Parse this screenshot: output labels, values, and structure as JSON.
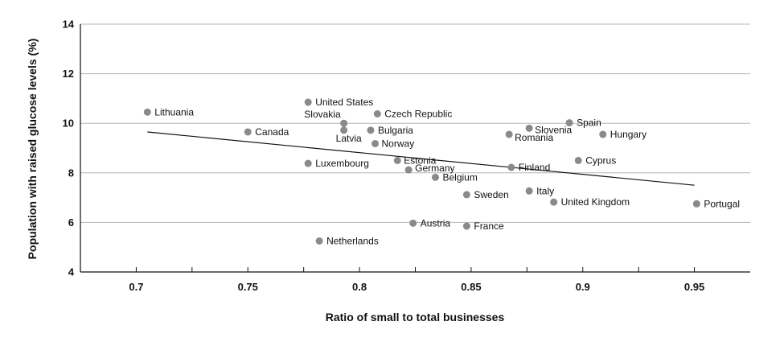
{
  "chart_data": {
    "type": "scatter",
    "title": "",
    "xlabel": "Ratio of small to total businesses",
    "ylabel": "Population with raised glucose levels (%)",
    "xlim": [
      0.675,
      0.975
    ],
    "ylim": [
      4,
      14
    ],
    "x_ticks": [
      0.7,
      0.75,
      0.8,
      0.85,
      0.9,
      0.95
    ],
    "x_tick_labels": [
      "0.7",
      "0.75",
      "0.8",
      "0.85",
      "0.9",
      "0.95"
    ],
    "y_ticks": [
      4,
      6,
      8,
      10,
      12,
      14
    ],
    "y_tick_labels": [
      "4",
      "6",
      "8",
      "10",
      "12",
      "14"
    ],
    "grid": "horizontal",
    "colors": {
      "point": "#8a8a8a",
      "trend": "#111111",
      "grid": "#b5b5b5",
      "axis": "#111111"
    },
    "points": [
      {
        "label": "Lithuania",
        "x": 0.705,
        "y": 10.45
      },
      {
        "label": "Canada",
        "x": 0.75,
        "y": 9.65
      },
      {
        "label": "United States",
        "x": 0.777,
        "y": 10.85
      },
      {
        "label": "Luxembourg",
        "x": 0.777,
        "y": 8.38
      },
      {
        "label": "Slovakia",
        "x": 0.793,
        "y": 10.0
      },
      {
        "label": "Latvia",
        "x": 0.793,
        "y": 9.72
      },
      {
        "label": "Netherlands",
        "x": 0.782,
        "y": 5.25
      },
      {
        "label": "Czech Republic",
        "x": 0.808,
        "y": 10.38
      },
      {
        "label": "Bulgaria",
        "x": 0.805,
        "y": 9.72
      },
      {
        "label": "Norway",
        "x": 0.807,
        "y": 9.18
      },
      {
        "label": "Estonia",
        "x": 0.817,
        "y": 8.5
      },
      {
        "label": "Germany",
        "x": 0.822,
        "y": 8.12
      },
      {
        "label": "Austria",
        "x": 0.824,
        "y": 5.97
      },
      {
        "label": "Belgium",
        "x": 0.834,
        "y": 7.82
      },
      {
        "label": "Sweden",
        "x": 0.848,
        "y": 7.12
      },
      {
        "label": "France",
        "x": 0.848,
        "y": 5.85
      },
      {
        "label": "Romania",
        "x": 0.867,
        "y": 9.55
      },
      {
        "label": "Finland",
        "x": 0.868,
        "y": 8.22
      },
      {
        "label": "Slovenia",
        "x": 0.876,
        "y": 9.8
      },
      {
        "label": "Italy",
        "x": 0.876,
        "y": 7.27
      },
      {
        "label": "United Kingdom",
        "x": 0.887,
        "y": 6.82
      },
      {
        "label": "Spain",
        "x": 0.894,
        "y": 10.02
      },
      {
        "label": "Cyprus",
        "x": 0.898,
        "y": 8.5
      },
      {
        "label": "Hungary",
        "x": 0.909,
        "y": 9.55
      },
      {
        "label": "Portugal",
        "x": 0.951,
        "y": 6.75
      }
    ],
    "trendline": {
      "x": [
        0.705,
        0.95
      ],
      "y": [
        9.65,
        7.5
      ]
    }
  }
}
